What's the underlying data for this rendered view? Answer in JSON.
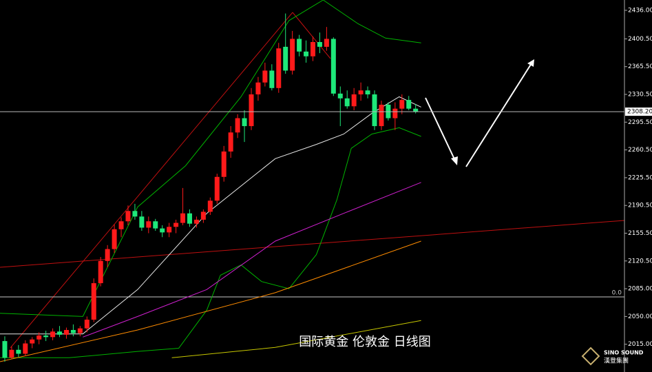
{
  "chart_data": {
    "type": "candlestick",
    "title": "国际黄金 伦敦金 日线图",
    "up_color": "#ff1a1a",
    "down_color": "#1ee87a",
    "ylim": [
      1980,
      2449
    ],
    "xlim": [
      -0.7,
      90.5
    ],
    "yticks": [
      {
        "value": 2015,
        "label": "2015.00"
      },
      {
        "value": 2050,
        "label": "2050.00"
      },
      {
        "value": 2085,
        "label": "2085.00"
      },
      {
        "value": 2120,
        "label": "2120.50"
      },
      {
        "value": 2155,
        "label": "2155.50"
      },
      {
        "value": 2190,
        "label": "2190.50"
      },
      {
        "value": 2225,
        "label": "2225.50"
      },
      {
        "value": 2260,
        "label": "2260.50"
      },
      {
        "value": 2295,
        "label": "2295.50"
      },
      {
        "value": 2330,
        "label": "2330.50"
      },
      {
        "value": 2365,
        "label": "2365.50"
      },
      {
        "value": 2400,
        "label": "2400.50"
      },
      {
        "value": 2436,
        "label": "2436.00"
      }
    ],
    "current_price": {
      "value": 2308.2,
      "label": "2308.20"
    },
    "zero_label": "0.0",
    "open": [
      2019,
      1998,
      2008,
      2003,
      2016,
      2021,
      2026,
      2024,
      2031,
      2027,
      2033,
      2029,
      2035,
      2046,
      2092,
      2120,
      2135,
      2160,
      2170,
      2183,
      2176,
      2162,
      2170,
      2161,
      2156,
      2163,
      2168,
      2180,
      2167,
      2172,
      2182,
      2196,
      2226,
      2258,
      2282,
      2300,
      2290,
      2330,
      2345,
      2360,
      2338,
      2390,
      2360,
      2400,
      2384,
      2378,
      2396,
      2390,
      2400,
      2331,
      2325,
      2315,
      2330,
      2335,
      2330,
      2290,
      2317,
      2300,
      2312,
      2323,
      2312
    ],
    "high": [
      2025,
      2012,
      2014,
      2020,
      2024,
      2030,
      2032,
      2035,
      2038,
      2036,
      2040,
      2038,
      2050,
      2098,
      2125,
      2140,
      2166,
      2175,
      2190,
      2192,
      2183,
      2176,
      2173,
      2165,
      2168,
      2172,
      2212,
      2185,
      2176,
      2185,
      2200,
      2230,
      2265,
      2290,
      2305,
      2310,
      2338,
      2352,
      2370,
      2368,
      2395,
      2432,
      2410,
      2405,
      2398,
      2403,
      2408,
      2415,
      2402,
      2340,
      2335,
      2338,
      2345,
      2340,
      2335,
      2322,
      2320,
      2320,
      2330,
      2328,
      2318
    ],
    "low": [
      1993,
      1996,
      1999,
      2000,
      2010,
      2015,
      2019,
      2020,
      2024,
      2022,
      2025,
      2025,
      2030,
      2043,
      2088,
      2112,
      2130,
      2150,
      2165,
      2172,
      2158,
      2155,
      2158,
      2150,
      2150,
      2155,
      2165,
      2163,
      2162,
      2168,
      2178,
      2192,
      2220,
      2250,
      2275,
      2270,
      2285,
      2322,
      2340,
      2335,
      2332,
      2356,
      2355,
      2378,
      2370,
      2372,
      2382,
      2385,
      2328,
      2290,
      2312,
      2310,
      2322,
      2325,
      2285,
      2285,
      2297,
      2285,
      2305,
      2310,
      2306
    ],
    "close": [
      1998,
      2008,
      2003,
      2016,
      2021,
      2026,
      2024,
      2031,
      2027,
      2033,
      2029,
      2035,
      2046,
      2092,
      2120,
      2135,
      2160,
      2170,
      2183,
      2176,
      2162,
      2170,
      2161,
      2156,
      2163,
      2168,
      2180,
      2167,
      2172,
      2182,
      2196,
      2226,
      2258,
      2282,
      2300,
      2290,
      2330,
      2345,
      2360,
      2338,
      2388,
      2360,
      2400,
      2384,
      2378,
      2396,
      2390,
      2400,
      2331,
      2325,
      2315,
      2330,
      2335,
      2330,
      2290,
      2317,
      2300,
      2312,
      2323,
      2312,
      2308
    ],
    "overlays": [
      {
        "color": "#00b400",
        "x": [
          -0.7,
          11.4,
          19.4,
          26.4,
          34.5,
          41.5,
          46.5,
          51.6,
          55.6,
          60.8
        ],
        "values": [
          2054,
          2050,
          2188,
          2240,
          2327,
          2423,
          2449,
          2419,
          2401,
          2395
        ]
      },
      {
        "color": "#00b400",
        "x": [
          -0.7,
          9.4,
          19.4,
          25.4,
          29.5,
          31.5,
          34.5,
          37.5,
          41.5,
          45.5,
          48.5,
          50.6,
          53.6,
          57.6,
          60.8
        ],
        "values": [
          1998,
          1998,
          2006,
          2010,
          2058,
          2102,
          2115,
          2094,
          2085,
          2128,
          2197,
          2262,
          2280,
          2288,
          2277
        ]
      },
      {
        "color": "#e8e8e8",
        "x": [
          -0.7,
          11.4,
          19.4,
          29.5,
          39.5,
          45.5,
          49.5,
          53.6,
          57.6,
          60.8
        ],
        "values": [
          2028,
          2028,
          2084,
          2180,
          2249,
          2267,
          2280,
          2306,
          2327,
          2314
        ]
      },
      {
        "color": "#d020d0",
        "x": [
          11.4,
          19.4,
          29.5,
          39.5,
          49.5,
          60.8
        ],
        "values": [
          2024,
          2050,
          2084,
          2145,
          2180,
          2219
        ]
      },
      {
        "color": "#ff8c00",
        "x": [
          -0.7,
          19.4,
          39.5,
          60.8
        ],
        "values": [
          1993,
          2033,
          2080,
          2145
        ]
      },
      {
        "color": "#c8c800",
        "x": [
          24.4,
          39.5,
          60.8
        ],
        "values": [
          1998,
          2011,
          2045
        ]
      }
    ]
  },
  "brand": {
    "name": "SINO SOUND",
    "cn": "漢登集團"
  }
}
